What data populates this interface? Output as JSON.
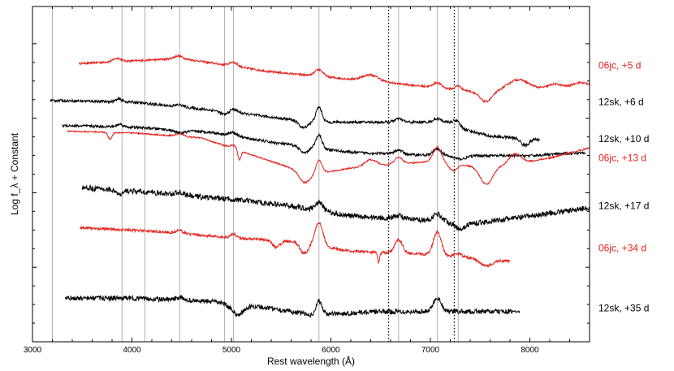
{
  "chart_data": {
    "type": "line",
    "xlabel": "Rest wavelength (Å)",
    "ylabel": "Log f_λ + Constant",
    "xlim": [
      3000,
      8600
    ],
    "x_ticks": [
      3000,
      4000,
      5000,
      6000,
      7000,
      8000
    ],
    "x_tick_labels": [
      "3000",
      "4000",
      "5000",
      "6000",
      "7000",
      "8000"
    ],
    "y_ticks": [
      0,
      1,
      2,
      3
    ],
    "grid": false,
    "legend": "none",
    "line_features_solid": [
      3200,
      3900,
      4130,
      4480,
      4930,
      5020,
      5880,
      6680,
      7070,
      7280
    ],
    "line_features_dotted": [
      6580,
      7240
    ],
    "colors": {
      "red": "#e8201c",
      "black": "#000000"
    },
    "series": [
      {
        "name": "06jc, +5 d",
        "color": "#e8201c",
        "level": 0.825,
        "noise": 0.003,
        "x_range": [
          3470,
          8600
        ],
        "trend": [
          [
            3470,
            0.005
          ],
          [
            4500,
            0.02
          ],
          [
            5400,
            -0.02
          ],
          [
            6500,
            -0.05
          ],
          [
            7500,
            -0.08
          ],
          [
            8600,
            -0.06
          ]
        ],
        "features": [
          [
            3850,
            0.01,
            40
          ],
          [
            4460,
            0.008,
            40
          ],
          [
            5020,
            0.012,
            40
          ],
          [
            5880,
            0.02,
            40
          ],
          [
            6400,
            0.018,
            80
          ],
          [
            7070,
            0.015,
            40
          ],
          [
            7280,
            0.012,
            30
          ],
          [
            7560,
            -0.03,
            60
          ],
          [
            7880,
            0.03,
            100
          ],
          [
            8250,
            0.01,
            60
          ],
          [
            8500,
            0.01,
            60
          ]
        ]
      },
      {
        "name": "12sk, +6 d",
        "color": "#000000",
        "level": 0.715,
        "noise": 0.004,
        "x_range": [
          3180,
          7230
        ],
        "trend": [
          [
            3180,
            0.005
          ],
          [
            4000,
            0.0
          ],
          [
            5000,
            -0.03
          ],
          [
            5800,
            -0.06
          ],
          [
            6500,
            -0.06
          ],
          [
            7230,
            -0.06
          ]
        ],
        "features": [
          [
            3870,
            0.008,
            30
          ],
          [
            4480,
            0.006,
            40
          ],
          [
            4930,
            -0.01,
            40
          ],
          [
            5020,
            0.01,
            40
          ],
          [
            5880,
            0.045,
            30
          ],
          [
            5720,
            -0.02,
            40
          ],
          [
            6680,
            0.01,
            40
          ],
          [
            7070,
            0.01,
            40
          ]
        ]
      },
      {
        "name": "12sk, +6 d",
        "color": "#000000",
        "level": 0.643,
        "noise": 0.005,
        "x_range": [
          7230,
          8100
        ],
        "trend": [
          [
            7230,
            0.0
          ],
          [
            7600,
            -0.03
          ],
          [
            8100,
            -0.04
          ]
        ],
        "features": [
          [
            7250,
            0.02,
            40
          ],
          [
            7950,
            -0.02,
            40
          ]
        ]
      },
      {
        "name": "12sk, +10 d",
        "color": "#000000",
        "level": 0.605,
        "noise": 0.004,
        "x_range": [
          3300,
          8560
        ],
        "trend": [
          [
            3300,
            0.04
          ],
          [
            4000,
            0.035
          ],
          [
            4800,
            0.02
          ],
          [
            5400,
            -0.01
          ],
          [
            6200,
            -0.04
          ],
          [
            7100,
            -0.05
          ],
          [
            8000,
            -0.05
          ],
          [
            8560,
            -0.04
          ]
        ],
        "features": [
          [
            3880,
            0.008,
            30
          ],
          [
            4480,
            -0.008,
            60
          ],
          [
            5020,
            0.01,
            40
          ],
          [
            5880,
            0.04,
            30
          ],
          [
            5730,
            -0.02,
            40
          ],
          [
            6680,
            0.012,
            40
          ],
          [
            7070,
            0.02,
            40
          ],
          [
            7300,
            -0.01,
            60
          ]
        ]
      },
      {
        "name": "06jc, +13 d",
        "color": "#e8201c",
        "level": 0.548,
        "noise": 0.002,
        "x_range": [
          3350,
          8600
        ],
        "trend": [
          [
            3350,
            0.08
          ],
          [
            4000,
            0.075
          ],
          [
            4700,
            0.06
          ],
          [
            5300,
            0.0
          ],
          [
            5800,
            -0.05
          ],
          [
            6200,
            -0.03
          ],
          [
            7000,
            -0.01
          ],
          [
            7600,
            -0.03
          ],
          [
            8200,
            0.0
          ],
          [
            8600,
            0.03
          ]
        ],
        "features": [
          [
            3780,
            -0.02,
            20
          ],
          [
            4480,
            0.008,
            40
          ],
          [
            5020,
            0.01,
            30
          ],
          [
            5080,
            -0.03,
            15
          ],
          [
            5880,
            0.04,
            30
          ],
          [
            5730,
            -0.03,
            50
          ],
          [
            6400,
            0.02,
            60
          ],
          [
            6680,
            0.02,
            40
          ],
          [
            7070,
            0.045,
            40
          ],
          [
            7230,
            -0.02,
            40
          ],
          [
            7560,
            -0.05,
            60
          ],
          [
            7850,
            0.03,
            60
          ]
        ]
      },
      {
        "name": "12sk, +17 d",
        "color": "#000000",
        "level": 0.405,
        "noise": 0.008,
        "x_range": [
          3500,
          8600
        ],
        "trend": [
          [
            3500,
            0.055
          ],
          [
            4200,
            0.04
          ],
          [
            5000,
            0.02
          ],
          [
            5600,
            0.0
          ],
          [
            6200,
            -0.03
          ],
          [
            6800,
            -0.04
          ],
          [
            7500,
            -0.05
          ],
          [
            8000,
            -0.03
          ],
          [
            8600,
            -0.005
          ]
        ],
        "features": [
          [
            3880,
            -0.015,
            30
          ],
          [
            4480,
            0.008,
            40
          ],
          [
            5880,
            0.025,
            40
          ],
          [
            6680,
            0.01,
            40
          ],
          [
            7070,
            0.02,
            40
          ],
          [
            7300,
            -0.02,
            60
          ]
        ]
      },
      {
        "name": "06jc, +34 d",
        "color": "#e8201c",
        "level": 0.28,
        "noise": 0.004,
        "x_range": [
          3480,
          7800
        ],
        "trend": [
          [
            3480,
            0.06
          ],
          [
            4200,
            0.05
          ],
          [
            5000,
            0.03
          ],
          [
            5600,
            0.02
          ],
          [
            6200,
            -0.01
          ],
          [
            7000,
            -0.02
          ],
          [
            7800,
            -0.04
          ]
        ],
        "features": [
          [
            4480,
            0.008,
            40
          ],
          [
            5020,
            0.012,
            30
          ],
          [
            5450,
            -0.02,
            40
          ],
          [
            5880,
            0.07,
            40
          ],
          [
            5730,
            -0.03,
            40
          ],
          [
            6480,
            -0.03,
            10
          ],
          [
            6680,
            0.04,
            40
          ],
          [
            7070,
            0.07,
            40
          ],
          [
            7280,
            0.01,
            40
          ],
          [
            7560,
            -0.02,
            60
          ]
        ]
      },
      {
        "name": "12sk, +35 d",
        "color": "#000000",
        "level": 0.1,
        "noise": 0.007,
        "x_range": [
          3330,
          7900
        ],
        "trend": [
          [
            3330,
            0.03
          ],
          [
            4000,
            0.03
          ],
          [
            4800,
            0.02
          ],
          [
            5400,
            0.0
          ],
          [
            5800,
            -0.02
          ],
          [
            6500,
            -0.01
          ],
          [
            7000,
            -0.01
          ],
          [
            7900,
            -0.01
          ]
        ],
        "features": [
          [
            4480,
            0.008,
            40
          ],
          [
            5060,
            -0.03,
            60
          ],
          [
            5880,
            0.04,
            30
          ],
          [
            7070,
            0.04,
            40
          ]
        ]
      }
    ]
  }
}
